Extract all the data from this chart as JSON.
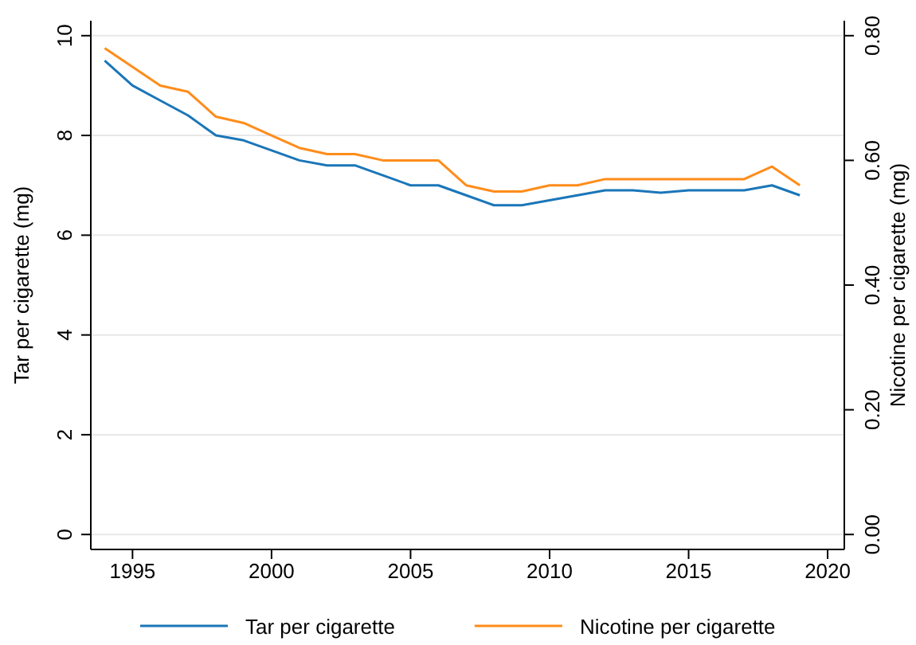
{
  "chart_data": {
    "type": "line",
    "xlabel": null,
    "ylabel": "Tar per cigarette (mg)",
    "y2label": "Nicotine per cigarette (mg)",
    "x": [
      1994,
      1995,
      1996,
      1997,
      1998,
      1999,
      2000,
      2001,
      2002,
      2003,
      2004,
      2005,
      2006,
      2007,
      2008,
      2009,
      2010,
      2011,
      2012,
      2013,
      2014,
      2015,
      2016,
      2017,
      2018,
      2019
    ],
    "series": [
      {
        "name": "Tar per cigarette",
        "color": "#1a76b8",
        "values": [
          9.5,
          9.0,
          8.7,
          8.4,
          8.0,
          7.9,
          7.7,
          7.5,
          7.4,
          7.4,
          7.2,
          7.0,
          7.0,
          6.8,
          6.6,
          6.6,
          6.7,
          6.8,
          6.9,
          6.9,
          6.85,
          6.9,
          6.9,
          6.9,
          7.0,
          6.8
        ]
      },
      {
        "name": "Nicotine per cigarette",
        "color": "#ff8c1a",
        "axis": "y2",
        "values": [
          0.78,
          0.75,
          0.72,
          0.71,
          0.67,
          0.66,
          0.64,
          0.62,
          0.61,
          0.61,
          0.6,
          0.6,
          0.6,
          0.56,
          0.55,
          0.55,
          0.56,
          0.56,
          0.57,
          0.57,
          0.57,
          0.57,
          0.57,
          0.57,
          0.59,
          0.56
        ]
      }
    ],
    "xlim": [
      1993.5,
      2020.6
    ],
    "xticks": [
      1995,
      2000,
      2005,
      2010,
      2015,
      2020
    ],
    "ylim": [
      -0.3,
      10.3
    ],
    "yticks": [
      0,
      2,
      4,
      6,
      8,
      10
    ],
    "y2lim": [
      -0.024,
      0.824
    ],
    "y2ticks": [
      {
        "value": 0,
        "label": "0.00"
      },
      {
        "value": 0.2,
        "label": "0.20"
      },
      {
        "value": 0.4,
        "label": "0.40"
      },
      {
        "value": 0.6,
        "label": "0.60"
      },
      {
        "value": 0.8,
        "label": "0.80"
      }
    ],
    "grid": "y",
    "legend": "bottom",
    "marker": "none",
    "line_style": "solid"
  }
}
